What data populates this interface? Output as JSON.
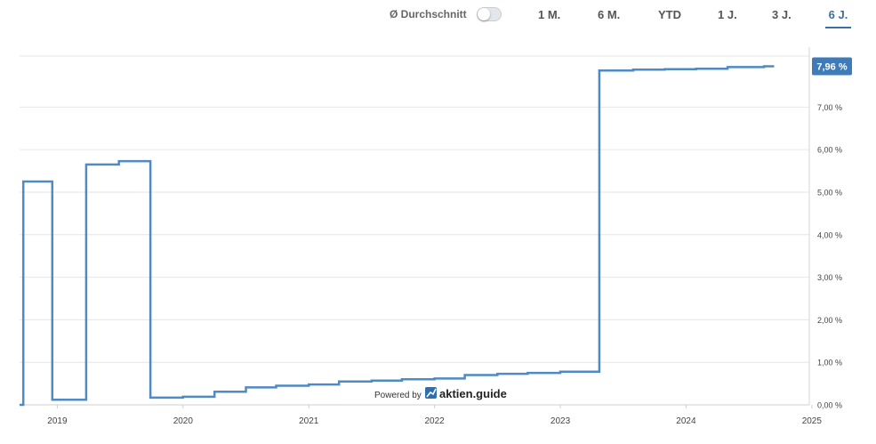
{
  "toolbar": {
    "average_label": "Ø Durchschnitt",
    "average_toggle_on": false,
    "ranges": [
      {
        "label": "1 M.",
        "active": false
      },
      {
        "label": "6 M.",
        "active": false
      },
      {
        "label": "YTD",
        "active": false
      },
      {
        "label": "1 J.",
        "active": false
      },
      {
        "label": "3 J.",
        "active": false
      },
      {
        "label": "6 J.",
        "active": true
      }
    ]
  },
  "watermark": {
    "powered_by": "Powered by",
    "brand": "aktien.guide"
  },
  "colors": {
    "line": "#4f8ac2",
    "badge": "#3f7bb8",
    "grid": "#e6e6e6",
    "axis_text": "#444444",
    "active_tab": "#3d6fa0"
  },
  "chart_data": {
    "type": "line",
    "step": true,
    "x_tick_labels": [
      "2019",
      "2020",
      "2021",
      "2022",
      "2023",
      "2024",
      "2025"
    ],
    "xlim": [
      2018.7,
      2024.98
    ],
    "y_tick_labels": [
      "0,00 %",
      "1,00 %",
      "2,00 %",
      "3,00 %",
      "4,00 %",
      "5,00 %",
      "6,00 %",
      "7,00 %"
    ],
    "ylim": [
      0,
      8.2
    ],
    "grid": true,
    "y_axis_side": "right",
    "last_value_label": "7,96 %",
    "series": [
      {
        "x": [
          2018.7,
          2018.73,
          2018.73,
          2018.96,
          2018.96,
          2019.23,
          2019.23,
          2019.49,
          2019.49,
          2019.74,
          2019.74,
          2020.0,
          2020.0,
          2020.25,
          2020.25,
          2020.5,
          2020.5,
          2020.74,
          2020.74,
          2021.0,
          2021.0,
          2021.24,
          2021.24,
          2021.5,
          2021.5,
          2021.74,
          2021.74,
          2022.0,
          2022.0,
          2022.24,
          2022.24,
          2022.5,
          2022.5,
          2022.74,
          2022.74,
          2023.0,
          2023.0,
          2023.31,
          2023.31,
          2023.58,
          2023.58,
          2023.83,
          2023.83,
          2024.08,
          2024.08,
          2024.33,
          2024.33,
          2024.62,
          2024.62,
          2024.7
        ],
        "y": [
          0.0,
          0.0,
          5.25,
          5.25,
          0.12,
          0.12,
          5.65,
          5.65,
          5.73,
          5.73,
          0.17,
          0.17,
          0.19,
          0.19,
          0.31,
          0.31,
          0.41,
          0.41,
          0.45,
          0.45,
          0.48,
          0.48,
          0.55,
          0.55,
          0.57,
          0.57,
          0.6,
          0.6,
          0.62,
          0.62,
          0.7,
          0.7,
          0.73,
          0.73,
          0.75,
          0.75,
          0.78,
          0.78,
          7.86,
          7.86,
          7.88,
          7.88,
          7.89,
          7.89,
          7.9,
          7.9,
          7.94,
          7.94,
          7.96,
          7.96
        ]
      }
    ]
  }
}
